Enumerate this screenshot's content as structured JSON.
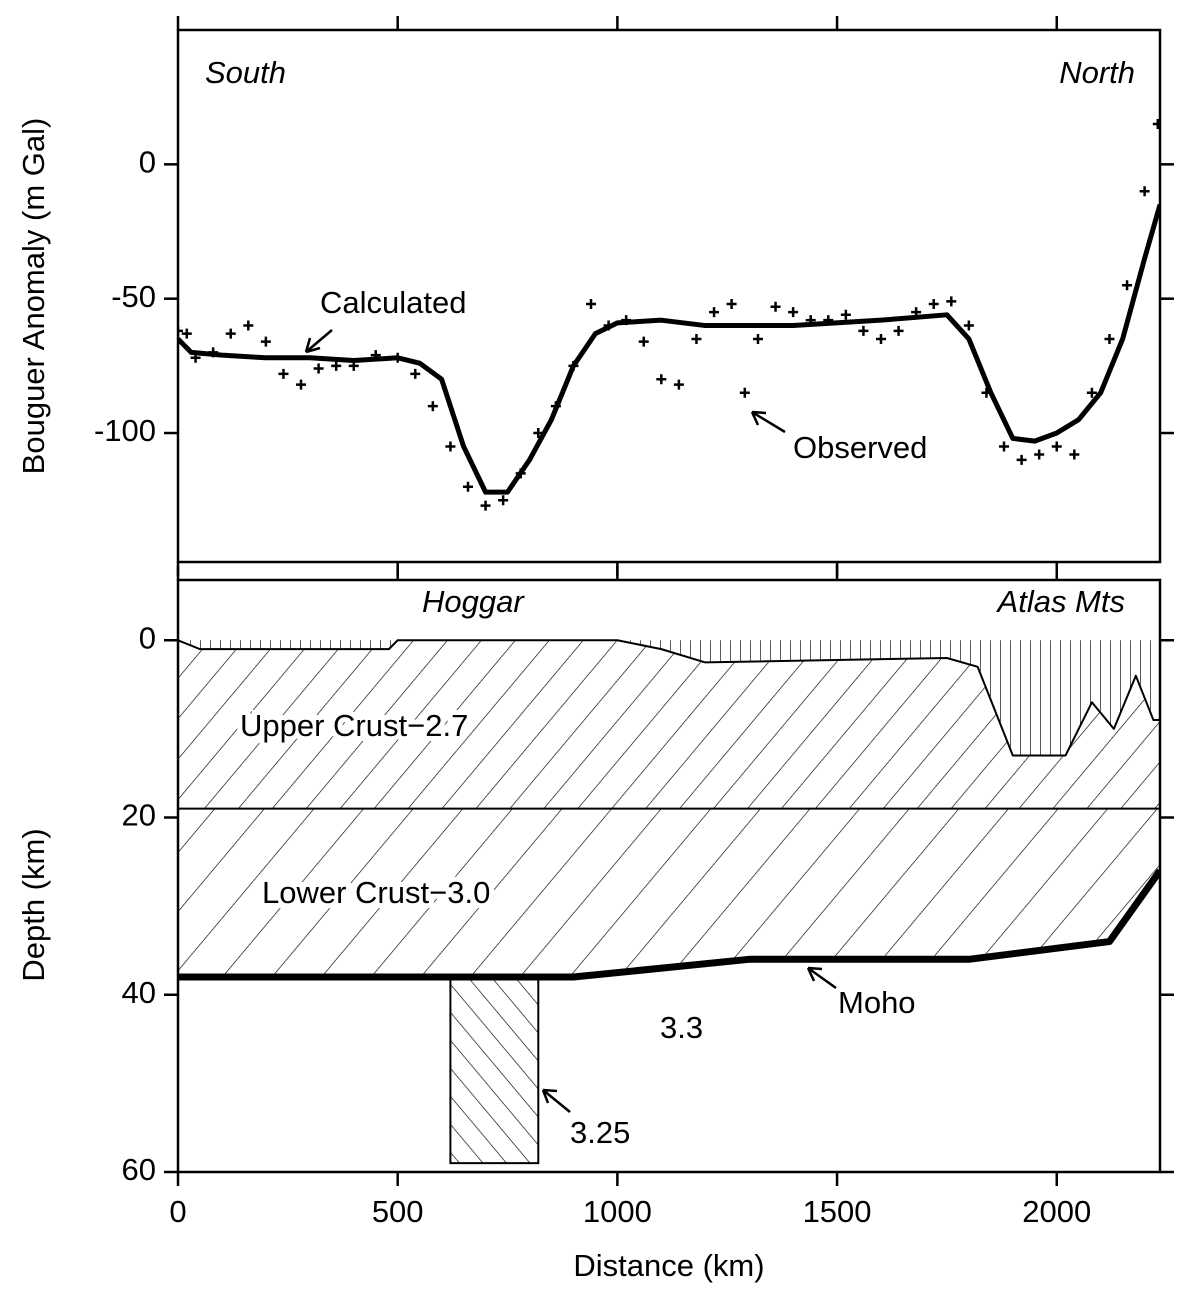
{
  "chart_data": [
    {
      "type": "line",
      "ylabel": "Bouguer Anomaly (m Gal)",
      "xlim": [
        0,
        2235
      ],
      "ylim": [
        -148,
        50
      ],
      "yticks": [
        -100,
        -50,
        0
      ],
      "annotations": [
        "South",
        "North",
        "Calculated",
        "Observed"
      ],
      "series": [
        {
          "name": "Calculated",
          "style": "line",
          "color": "#000000",
          "x": [
            0,
            30,
            100,
            200,
            300,
            400,
            500,
            550,
            600,
            650,
            700,
            750,
            800,
            850,
            900,
            950,
            1000,
            1100,
            1200,
            1400,
            1600,
            1750,
            1800,
            1850,
            1900,
            1950,
            2000,
            2050,
            2100,
            2150,
            2200,
            2235
          ],
          "values": [
            -65,
            -70,
            -71,
            -72,
            -72,
            -73,
            -72,
            -74,
            -80,
            -105,
            -122,
            -122,
            -110,
            -95,
            -75,
            -63,
            -59,
            -58,
            -60,
            -60,
            -58,
            -56,
            -65,
            -85,
            -102,
            -103,
            -100,
            -95,
            -85,
            -65,
            -35,
            -15
          ]
        },
        {
          "name": "Observed",
          "style": "points",
          "color": "#000000",
          "x": [
            0,
            20,
            40,
            80,
            120,
            160,
            200,
            240,
            280,
            320,
            360,
            400,
            450,
            500,
            540,
            580,
            620,
            660,
            700,
            740,
            780,
            820,
            860,
            900,
            940,
            980,
            1020,
            1060,
            1100,
            1140,
            1180,
            1220,
            1260,
            1290,
            1320,
            1360,
            1400,
            1440,
            1480,
            1520,
            1560,
            1600,
            1640,
            1680,
            1720,
            1760,
            1800,
            1840,
            1880,
            1920,
            1960,
            2000,
            2040,
            2080,
            2120,
            2160,
            2200,
            2230
          ],
          "values": [
            -62,
            -63,
            -72,
            -70,
            -63,
            -60,
            -66,
            -78,
            -82,
            -76,
            -75,
            -75,
            -71,
            -72,
            -78,
            -90,
            -105,
            -120,
            -127,
            -125,
            -115,
            -100,
            -90,
            -75,
            -52,
            -60,
            -58,
            -66,
            -80,
            -82,
            -65,
            -55,
            -52,
            -85,
            -65,
            -53,
            -55,
            -58,
            -58,
            -56,
            -62,
            -65,
            -62,
            -55,
            -52,
            -51,
            -60,
            -85,
            -105,
            -110,
            -108,
            -105,
            -108,
            -85,
            -65,
            -45,
            -10,
            15
          ]
        }
      ]
    },
    {
      "type": "section",
      "xlabel": "Distance (km)",
      "ylabel": "Depth (km)",
      "xlim": [
        0,
        2235
      ],
      "xticks": [
        0,
        500,
        1000,
        1500,
        2000
      ],
      "ylim": [
        60,
        -6.8
      ],
      "yticks": [
        0,
        20,
        40,
        60
      ],
      "annotations": [
        "Hoggar",
        "Atlas Mts",
        "Upper Crust−2.7",
        "Lower Crust−3.0",
        "Moho",
        "3.3",
        "3.25"
      ],
      "sediment": {
        "x": [
          0,
          50,
          480,
          500,
          1000,
          1100,
          1200,
          1750,
          1820,
          1860,
          1900,
          2020,
          2080,
          2130,
          2180,
          2220,
          2235
        ],
        "values": [
          0,
          1,
          1,
          0,
          0,
          1,
          2.5,
          2,
          3,
          8,
          13,
          13,
          7,
          10,
          4,
          9,
          9
        ]
      },
      "crust": {
        "x": [
          0,
          2235
        ],
        "values": [
          19,
          19
        ]
      },
      "moho": {
        "x": [
          0,
          900,
          1300,
          1800,
          2120,
          2235
        ],
        "values": [
          38,
          38,
          36,
          36,
          34,
          26
        ]
      },
      "block": {
        "x": [
          620,
          820
        ],
        "top": 38,
        "bottom": 59
      }
    }
  ]
}
